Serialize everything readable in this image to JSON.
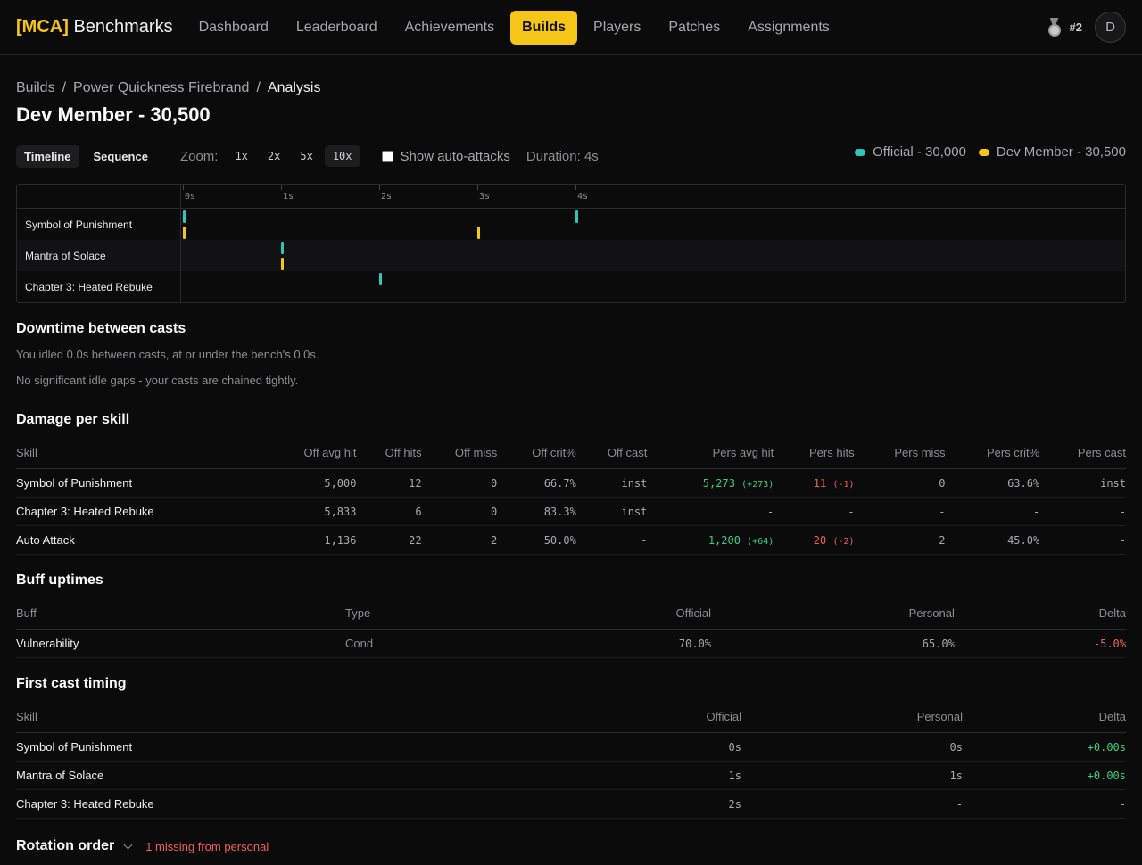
{
  "brand": {
    "tag": "[MCA]",
    "name": "Benchmarks"
  },
  "nav": [
    {
      "label": "Dashboard",
      "active": false
    },
    {
      "label": "Leaderboard",
      "active": false
    },
    {
      "label": "Achievements",
      "active": false
    },
    {
      "label": "Builds",
      "active": true
    },
    {
      "label": "Players",
      "active": false
    },
    {
      "label": "Patches",
      "active": false
    },
    {
      "label": "Assignments",
      "active": false
    }
  ],
  "user": {
    "rank": "#2",
    "avatar_initial": "D"
  },
  "breadcrumb": {
    "root": "Builds",
    "build": "Power Quickness Firebrand",
    "current": "Analysis",
    "sep": "/"
  },
  "page_title": "Dev Member - 30,500",
  "controls": {
    "view_tabs": [
      {
        "label": "Timeline",
        "active": true
      },
      {
        "label": "Sequence",
        "active": false
      }
    ],
    "zoom_label": "Zoom:",
    "zoom_options": [
      {
        "label": "1x",
        "active": false
      },
      {
        "label": "2x",
        "active": false
      },
      {
        "label": "5x",
        "active": false
      },
      {
        "label": "10x",
        "active": true
      }
    ],
    "auto_attacks_label": "Show auto-attacks",
    "auto_attacks_checked": false,
    "duration": "Duration: 4s"
  },
  "legend": [
    {
      "label": "Official - 30,000",
      "color": "#2fc6b8"
    },
    {
      "label": "Dev Member - 30,500",
      "color": "#f5c518"
    }
  ],
  "timeline": {
    "ticks": [
      "0s",
      "1s",
      "2s",
      "3s",
      "4s"
    ],
    "rows": [
      {
        "skill": "Symbol of Punishment",
        "official_casts_s": [
          0,
          4
        ],
        "personal_casts_s": [
          0,
          3
        ]
      },
      {
        "skill": "Mantra of Solace",
        "official_casts_s": [
          1
        ],
        "personal_casts_s": [
          1
        ]
      },
      {
        "skill": "Chapter 3: Heated Rebuke",
        "official_casts_s": [
          2
        ],
        "personal_casts_s": []
      }
    ]
  },
  "downtime": {
    "title": "Downtime between casts",
    "line1": "You idled 0.0s between casts, at or under the bench's 0.0s.",
    "line2": "No significant idle gaps - your casts are chained tightly."
  },
  "damage": {
    "title": "Damage per skill",
    "headers": [
      "Skill",
      "Off avg hit",
      "Off hits",
      "Off miss",
      "Off crit%",
      "Off cast",
      "Pers avg hit",
      "Pers hits",
      "Pers miss",
      "Pers crit%",
      "Pers cast"
    ],
    "rows": [
      {
        "skill": "Symbol of Punishment",
        "off_avg": "5,000",
        "off_hits": "12",
        "off_miss": "0",
        "off_crit": "66.7%",
        "off_cast": "inst",
        "pers_avg": "5,273",
        "pers_avg_delta": "(+273)",
        "pers_avg_tone": "pos",
        "pers_hits": "11",
        "pers_hits_delta": "(-1)",
        "pers_hits_tone": "neg",
        "pers_miss": "0",
        "pers_crit": "63.6%",
        "pers_cast": "inst"
      },
      {
        "skill": "Chapter 3: Heated Rebuke",
        "off_avg": "5,833",
        "off_hits": "6",
        "off_miss": "0",
        "off_crit": "83.3%",
        "off_cast": "inst",
        "pers_avg": "-",
        "pers_avg_delta": "",
        "pers_avg_tone": "",
        "pers_hits": "-",
        "pers_hits_delta": "",
        "pers_hits_tone": "",
        "pers_miss": "-",
        "pers_crit": "-",
        "pers_cast": "-"
      },
      {
        "skill": "Auto Attack",
        "off_avg": "1,136",
        "off_hits": "22",
        "off_miss": "2",
        "off_crit": "50.0%",
        "off_cast": "-",
        "pers_avg": "1,200",
        "pers_avg_delta": "(+64)",
        "pers_avg_tone": "pos",
        "pers_hits": "20",
        "pers_hits_delta": "(-2)",
        "pers_hits_tone": "neg",
        "pers_miss": "2",
        "pers_crit": "45.0%",
        "pers_cast": "-"
      }
    ]
  },
  "buffs": {
    "title": "Buff uptimes",
    "headers": [
      "Buff",
      "Type",
      "Official",
      "Personal",
      "Delta"
    ],
    "rows": [
      {
        "buff": "Vulnerability",
        "type": "Cond",
        "official": "70.0%",
        "personal": "65.0%",
        "delta": "-5.0%",
        "tone": "neg"
      }
    ]
  },
  "first_cast": {
    "title": "First cast timing",
    "headers": [
      "Skill",
      "Official",
      "Personal",
      "Delta"
    ],
    "rows": [
      {
        "skill": "Symbol of Punishment",
        "official": "0s",
        "personal": "0s",
        "delta": "+0.00s",
        "tone": "pos"
      },
      {
        "skill": "Mantra of Solace",
        "official": "1s",
        "personal": "1s",
        "delta": "+0.00s",
        "tone": "pos"
      },
      {
        "skill": "Chapter 3: Heated Rebuke",
        "official": "2s",
        "personal": "-",
        "delta": "-",
        "tone": ""
      }
    ]
  },
  "rotation": {
    "title": "Rotation order",
    "missing": "1 missing from personal"
  }
}
